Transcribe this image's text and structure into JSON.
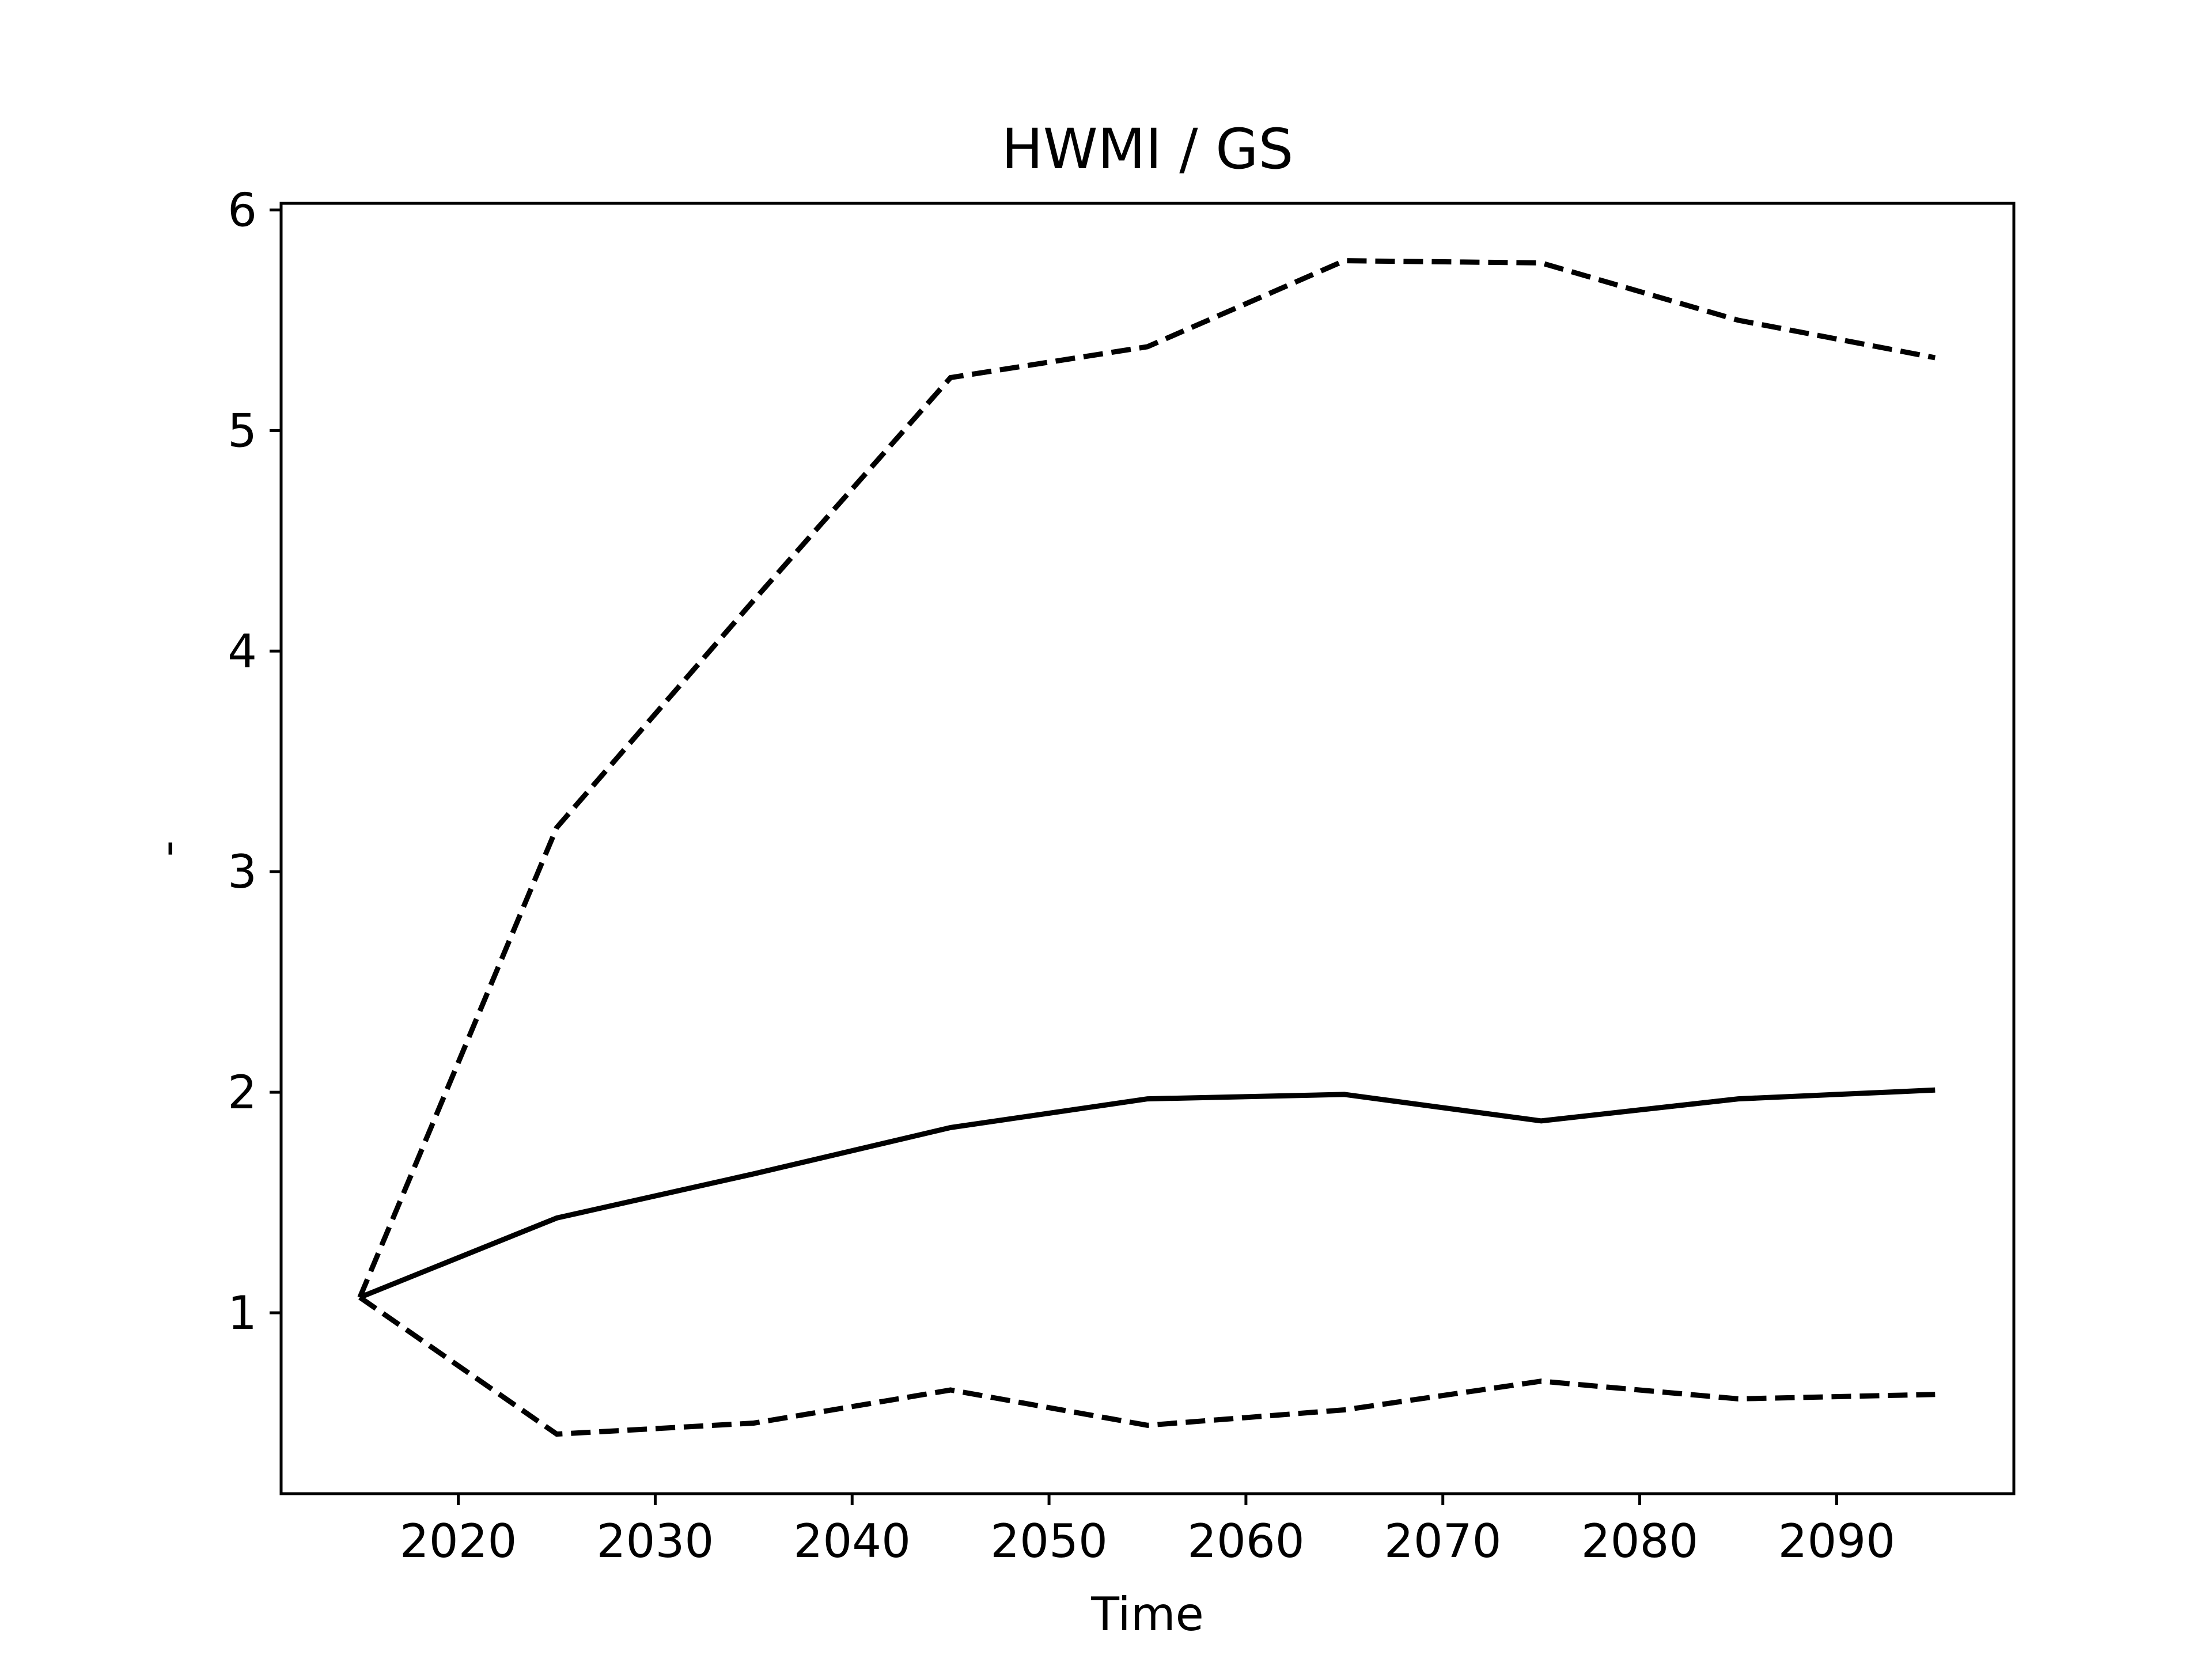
{
  "chart_data": {
    "type": "line",
    "title": "HWMI / GS",
    "xlabel": "Time",
    "ylabel": "-",
    "xlim": [
      2011,
      2099
    ],
    "ylim": [
      0.18,
      6.03
    ],
    "xticks": [
      2020,
      2030,
      2040,
      2050,
      2060,
      2070,
      2080,
      2090
    ],
    "yticks": [
      1,
      2,
      3,
      4,
      5,
      6
    ],
    "grid": false,
    "legend": "none",
    "x": [
      2015,
      2025,
      2035,
      2045,
      2055,
      2065,
      2075,
      2085,
      2095
    ],
    "series": [
      {
        "style": "solid",
        "color": "#000000",
        "values": [
          1.07,
          1.43,
          1.63,
          1.84,
          1.97,
          1.99,
          1.87,
          1.97,
          2.01
        ]
      },
      {
        "style": "dashed",
        "color": "#000000",
        "values": [
          1.07,
          3.2,
          4.23,
          5.24,
          5.38,
          5.77,
          5.76,
          5.5,
          5.33
        ]
      },
      {
        "style": "dashed",
        "color": "#000000",
        "values": [
          1.07,
          0.45,
          0.5,
          0.65,
          0.49,
          0.56,
          0.69,
          0.61,
          0.63
        ]
      }
    ]
  }
}
